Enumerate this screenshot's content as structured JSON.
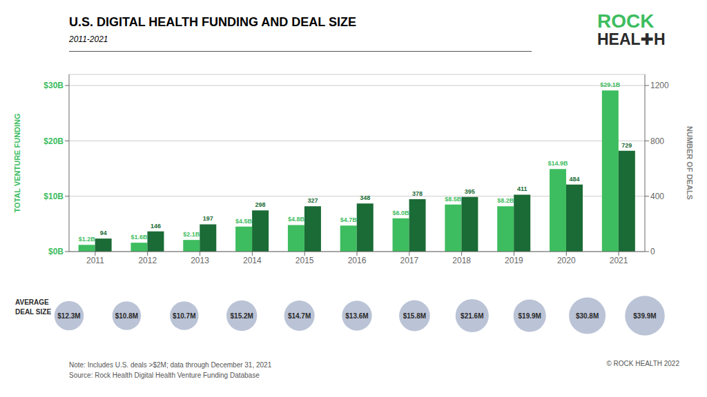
{
  "chart_data": {
    "type": "bar",
    "title": "U.S. DIGITAL HEALTH FUNDING AND DEAL SIZE",
    "subtitle": "2011-2021",
    "categories": [
      "2011",
      "2012",
      "2013",
      "2014",
      "2015",
      "2016",
      "2017",
      "2018",
      "2019",
      "2020",
      "2021"
    ],
    "y_label": "TOTAL VENTURE FUNDING",
    "y2_label": "NUMBER OF DEALS",
    "ylim": [
      0,
      32
    ],
    "yticks": [
      {
        "value": 0,
        "label": "$0B"
      },
      {
        "value": 10,
        "label": "$10B"
      },
      {
        "value": 20,
        "label": "$20B"
      },
      {
        "value": 30,
        "label": "$30B"
      }
    ],
    "y2lim": [
      0,
      1280
    ],
    "y2ticks": [
      0,
      400,
      800,
      1200
    ],
    "grid": true,
    "series": [
      {
        "color": "#3dbd5f",
        "values": [
          1.2,
          1.6,
          2.1,
          4.5,
          4.8,
          4.7,
          6.0,
          8.5,
          8.2,
          14.9,
          29.1
        ],
        "value_labels": [
          "$1.2B",
          "$1.6B",
          "$2.1B",
          "$4.5B",
          "$4.8B",
          "$4.7B",
          "$6.0B",
          "$8.5B",
          "$8.2B",
          "$14.9B",
          "$29.1B"
        ],
        "data_labels": true
      },
      {
        "color": "#1a6b35",
        "axis": "y2",
        "values": [
          94,
          146,
          197,
          298,
          327,
          348,
          378,
          395,
          411,
          484,
          729
        ],
        "data_labels": true
      }
    ],
    "average_deal_size": {
      "label": [
        "AVERAGE",
        "DEAL SIZE"
      ],
      "values": [
        12.3,
        10.8,
        10.7,
        15.2,
        14.7,
        13.6,
        15.8,
        21.6,
        19.9,
        30.8,
        39.9
      ],
      "value_labels": [
        "$12.3M",
        "$10.8M",
        "$10.7M",
        "$15.2M",
        "$14.7M",
        "$13.6M",
        "$15.8M",
        "$21.6M",
        "$19.9M",
        "$30.8M",
        "$39.9M"
      ],
      "color": "#aab4cc"
    },
    "logo": [
      {
        "text": "ROCK",
        "color": "#3dbd5f"
      },
      {
        "text": "HEAL✚H",
        "color": "#2a2a2a"
      }
    ],
    "note": "Note: Includes U.S. deals >$2M; data through December 31, 2021\nSource: Rock Health Digital Health Venture Funding Database",
    "copyright": "© ROCK HEALTH 2022"
  }
}
